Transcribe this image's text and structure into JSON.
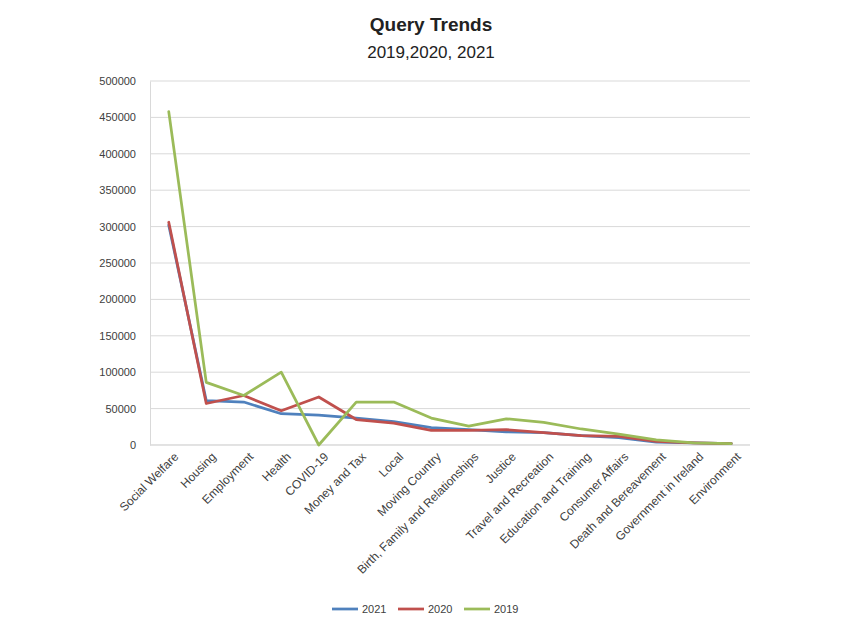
{
  "chart_data": {
    "type": "line",
    "title": "Query Trends",
    "subtitle": "2019,2020, 2021",
    "categories": [
      "Social Welfare",
      "Housing",
      "Employment",
      "Health",
      "COVID-19",
      "Money and Tax",
      "Local",
      "Moving Country",
      "Birth, Family and Relationships",
      "Justice",
      "Travel and Recreation",
      "Education and Training",
      "Consumer Affairs",
      "Death and Bereavement",
      "Government in Ireland",
      "Environment"
    ],
    "series": [
      {
        "name": "2021",
        "color": "#4f81bd",
        "values": [
          302000,
          61000,
          59000,
          43000,
          41000,
          37000,
          32000,
          24000,
          21000,
          18000,
          17000,
          13000,
          10000,
          4000,
          3000,
          2000
        ]
      },
      {
        "name": "2020",
        "color": "#c0504d",
        "values": [
          306000,
          57000,
          68000,
          47000,
          66000,
          35000,
          30000,
          20000,
          20000,
          21000,
          17000,
          13000,
          12000,
          5000,
          3000,
          2000
        ]
      },
      {
        "name": "2019",
        "color": "#9bbb59",
        "values": [
          458000,
          86000,
          68000,
          100000,
          0,
          59000,
          59000,
          37000,
          26000,
          36000,
          31000,
          22000,
          15000,
          7000,
          3000,
          2000
        ]
      }
    ],
    "ylim": [
      0,
      500000
    ],
    "yticks": [
      0,
      50000,
      100000,
      150000,
      200000,
      250000,
      300000,
      350000,
      400000,
      450000,
      500000
    ],
    "grid": true,
    "legend": "bottom"
  }
}
